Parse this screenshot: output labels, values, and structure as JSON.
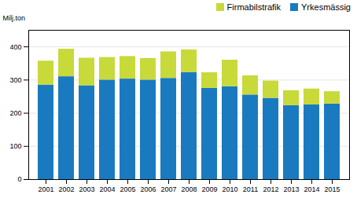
{
  "chart_data": {
    "type": "bar",
    "stacked": true,
    "categories": [
      "2001",
      "2002",
      "2003",
      "2004",
      "2005",
      "2006",
      "2007",
      "2008",
      "2009",
      "2010",
      "2011",
      "2012",
      "2013",
      "2014",
      "2015"
    ],
    "series": [
      {
        "name": "Yrkesmässig",
        "color": "#1a7abf",
        "values": [
          285,
          310,
          283,
          300,
          303,
          300,
          305,
          323,
          275,
          280,
          255,
          245,
          223,
          225,
          228
        ]
      },
      {
        "name": "Firmabilstrafik",
        "color": "#c8d93a",
        "values": [
          72,
          83,
          83,
          68,
          68,
          65,
          80,
          68,
          47,
          80,
          58,
          52,
          45,
          48,
          37
        ]
      }
    ],
    "ylabel": "Milj.ton",
    "ylim": [
      0,
      450
    ],
    "yticks": [
      0,
      100,
      200,
      300,
      400
    ],
    "grid": true,
    "legend": "upper right"
  }
}
